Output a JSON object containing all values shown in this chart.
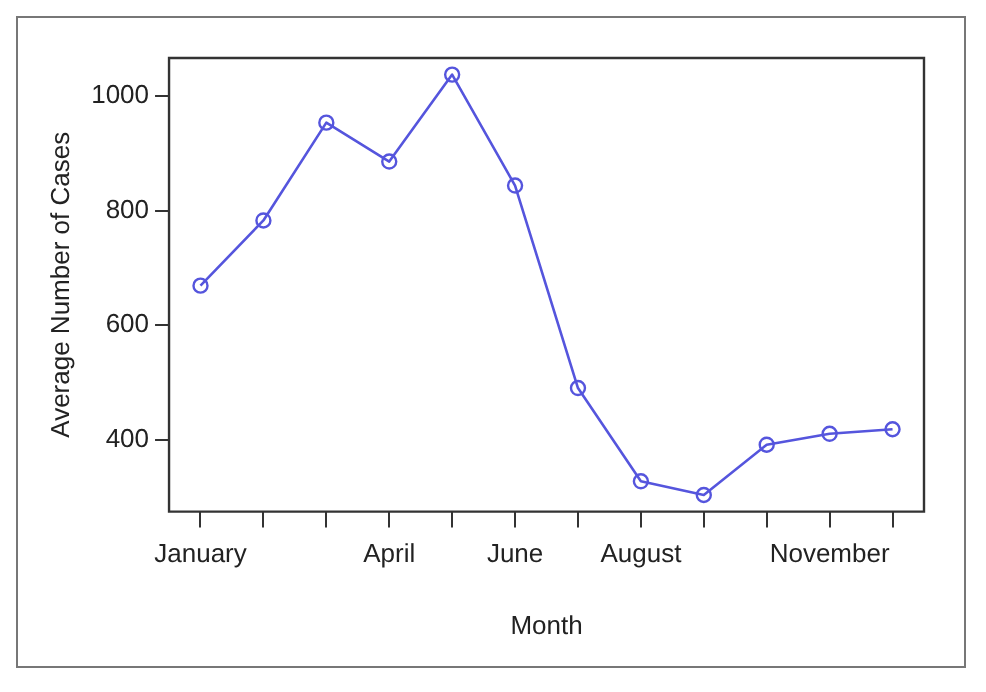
{
  "chart_data": {
    "type": "line",
    "xlabel": "Month",
    "ylabel": "Average Number of Cases",
    "categories": [
      "January",
      null,
      null,
      "April",
      null,
      "June",
      null,
      "August",
      null,
      null,
      "November",
      null
    ],
    "series": [
      {
        "color": "#5555dd",
        "values": [
          669,
          783,
          954,
          886,
          1038,
          844,
          490,
          327,
          303,
          391,
          410,
          418
        ]
      }
    ],
    "ylim": [
      274,
      1067
    ],
    "yticks": [
      400,
      600,
      800,
      1000
    ],
    "grid": false,
    "legend": false,
    "marker": "circle",
    "line_style": "solid"
  }
}
